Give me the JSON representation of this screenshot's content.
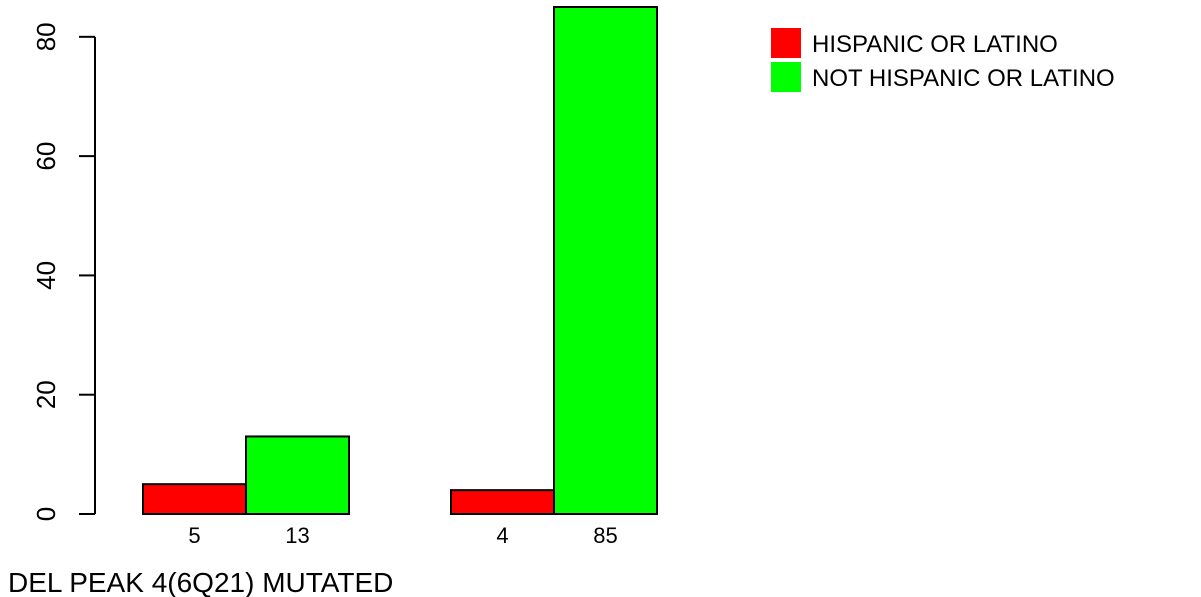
{
  "chart_data": {
    "type": "bar",
    "xlabel": "DEL PEAK  4(6Q21) MUTATED",
    "ylabel": "",
    "ylim": [
      0,
      85
    ],
    "yticks": [
      0,
      20,
      40,
      60,
      80
    ],
    "grid": false,
    "legend_position": "top-right",
    "groups": [
      "",
      ""
    ],
    "series": [
      {
        "name": "HISPANIC OR LATINO",
        "color": "#ff0000",
        "values": [
          5,
          4
        ]
      },
      {
        "name": "NOT HISPANIC OR LATINO",
        "color": "#00ff00",
        "values": [
          13,
          85
        ]
      }
    ],
    "bar_labels": [
      "5",
      "13",
      "4",
      "85"
    ]
  }
}
